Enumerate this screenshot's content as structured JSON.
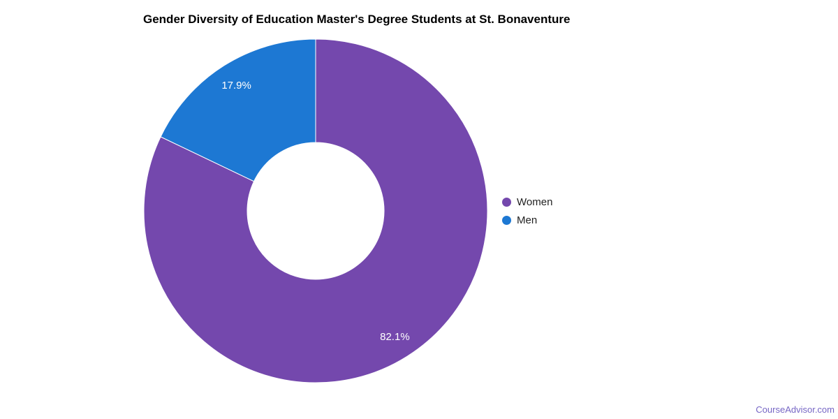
{
  "chart_data": {
    "type": "pie",
    "donut": true,
    "hole_ratio": 0.4,
    "title": "Gender Diversity of Education Master's Degree Students at St. Bonaventure",
    "slices": [
      {
        "label": "Women",
        "value": 82.1,
        "color": "#7448ad"
      },
      {
        "label": "Men",
        "value": 17.9,
        "color": "#1d78d3"
      }
    ],
    "start_angle_deg": 0,
    "direction": "clockwise",
    "legend_position": "right",
    "slice_label_format": "percent",
    "slice_label_color": "#ffffff",
    "slice_labels_text": [
      "82.1%",
      "17.9%"
    ],
    "background": "#ffffff"
  },
  "watermark": {
    "text": "CourseAdvisor.com",
    "color": "#7666c5"
  }
}
